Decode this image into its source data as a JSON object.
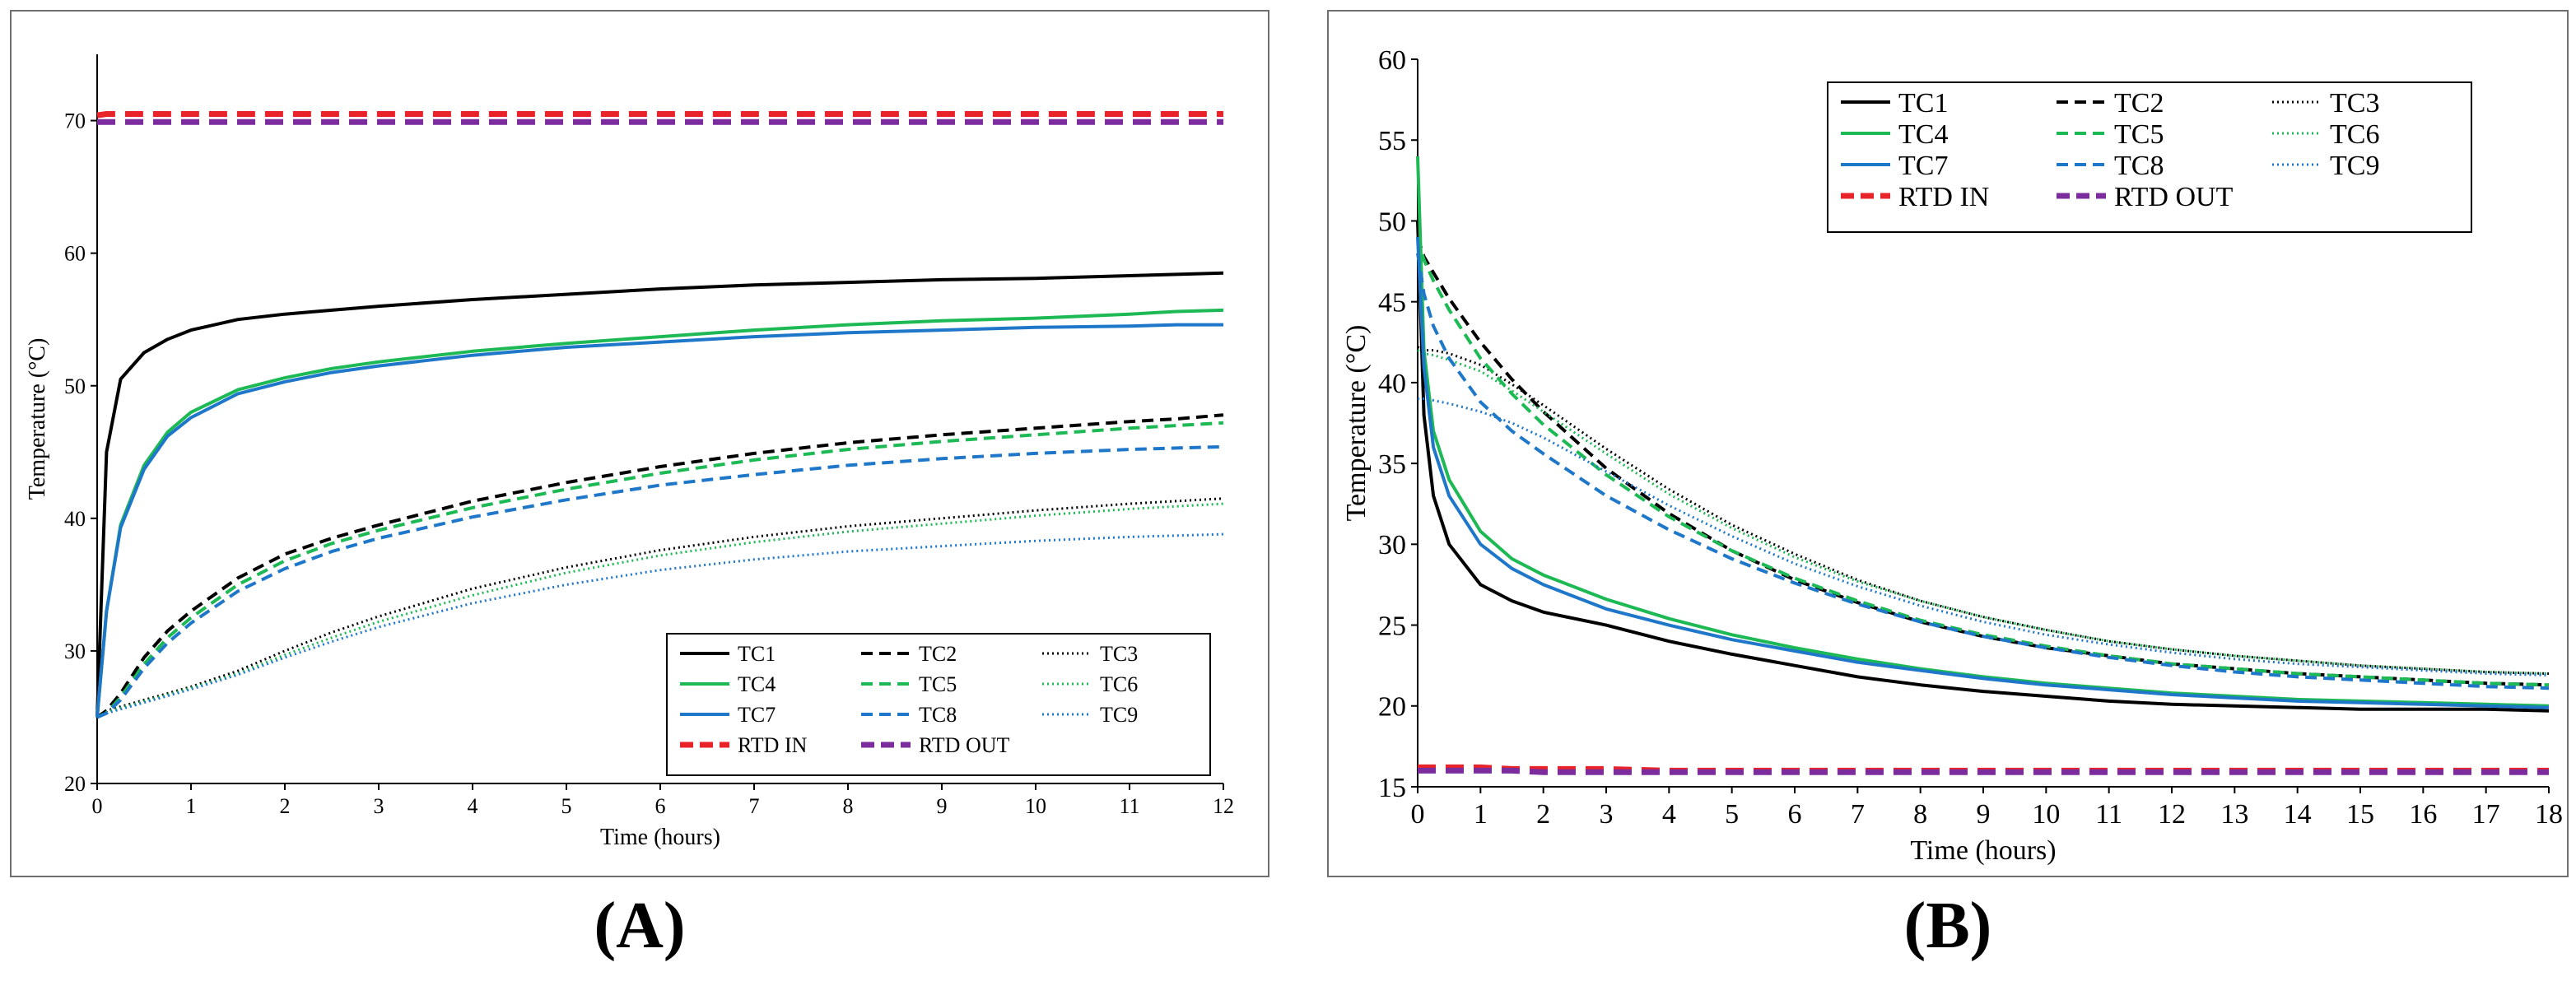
{
  "chart_data": [
    {
      "panel_label": "(A)",
      "type": "line",
      "title": "",
      "xlabel": "Time (hours)",
      "ylabel": "Temperature (°C)",
      "xlim": [
        0,
        12
      ],
      "ylim": [
        20,
        75
      ],
      "xticks": [
        "0",
        "1",
        "2",
        "3",
        "4",
        "5",
        "6",
        "7",
        "8",
        "9",
        "10",
        "11",
        "12"
      ],
      "yticks": [
        "20",
        "30",
        "40",
        "50",
        "60",
        "70"
      ],
      "legend_position": "bottom-right",
      "grid": false,
      "x": [
        0,
        0.1,
        0.25,
        0.5,
        0.75,
        1,
        1.5,
        2,
        2.5,
        3,
        4,
        5,
        6,
        7,
        8,
        9,
        10,
        11,
        11.5,
        12
      ],
      "series": [
        {
          "name": "TC1",
          "color": "#000000",
          "dash": "solid",
          "values": [
            25,
            45,
            50.5,
            52.5,
            53.5,
            54.2,
            55,
            55.4,
            55.7,
            56,
            56.5,
            56.9,
            57.3,
            57.6,
            57.8,
            58,
            58.1,
            58.3,
            58.4,
            58.5
          ]
        },
        {
          "name": "TC2",
          "color": "#000000",
          "dash": "dashed",
          "values": [
            25,
            25.5,
            26.8,
            29.5,
            31.5,
            33,
            35.5,
            37.3,
            38.5,
            39.5,
            41.3,
            42.7,
            43.9,
            44.9,
            45.7,
            46.3,
            46.8,
            47.3,
            47.5,
            47.8
          ]
        },
        {
          "name": "TC3",
          "color": "#000000",
          "dash": "dotted",
          "values": [
            25,
            25.5,
            25.8,
            26.3,
            26.8,
            27.3,
            28.5,
            30,
            31.4,
            32.6,
            34.7,
            36.3,
            37.6,
            38.6,
            39.4,
            40,
            40.6,
            41.1,
            41.3,
            41.5
          ]
        },
        {
          "name": "TC4",
          "color": "#1db954",
          "dash": "solid",
          "values": [
            25,
            33,
            39.5,
            44,
            46.5,
            48,
            49.7,
            50.6,
            51.3,
            51.8,
            52.6,
            53.2,
            53.7,
            54.2,
            54.6,
            54.9,
            55.1,
            55.4,
            55.6,
            55.7
          ]
        },
        {
          "name": "TC5",
          "color": "#1db954",
          "dash": "dashed",
          "values": [
            25,
            25.3,
            26.5,
            29,
            31,
            32.5,
            35,
            36.8,
            38.1,
            39.1,
            40.8,
            42.2,
            43.4,
            44.4,
            45.2,
            45.8,
            46.3,
            46.8,
            47,
            47.2
          ]
        },
        {
          "name": "TC6",
          "color": "#1db954",
          "dash": "dotted",
          "values": [
            25,
            25.4,
            25.7,
            26.2,
            26.7,
            27.2,
            28.3,
            29.7,
            31,
            32.2,
            34.2,
            35.9,
            37.2,
            38.2,
            39,
            39.6,
            40.2,
            40.7,
            40.9,
            41.1
          ]
        },
        {
          "name": "TC7",
          "color": "#1f77c9",
          "dash": "solid",
          "values": [
            25,
            33,
            39.3,
            43.7,
            46.2,
            47.6,
            49.4,
            50.3,
            51,
            51.5,
            52.3,
            52.9,
            53.3,
            53.7,
            54,
            54.2,
            54.4,
            54.5,
            54.6,
            54.6
          ]
        },
        {
          "name": "TC8",
          "color": "#1f77c9",
          "dash": "dashed",
          "values": [
            25,
            25.3,
            26.3,
            28.7,
            30.6,
            32.1,
            34.5,
            36.2,
            37.5,
            38.5,
            40.1,
            41.4,
            42.5,
            43.3,
            44,
            44.5,
            44.9,
            45.2,
            45.3,
            45.4
          ]
        },
        {
          "name": "TC9",
          "color": "#1f77c9",
          "dash": "dotted",
          "values": [
            25,
            25.3,
            25.6,
            26.1,
            26.6,
            27.1,
            28.2,
            29.5,
            30.7,
            31.8,
            33.6,
            35,
            36.1,
            36.9,
            37.5,
            37.9,
            38.3,
            38.6,
            38.7,
            38.8
          ]
        },
        {
          "name": "RTD IN",
          "color": "#e8232a",
          "dash": "dashed-thick",
          "values": [
            70.4,
            70.5,
            70.5,
            70.5,
            70.5,
            70.5,
            70.5,
            70.5,
            70.5,
            70.5,
            70.5,
            70.5,
            70.5,
            70.5,
            70.5,
            70.5,
            70.5,
            70.5,
            70.5,
            70.5
          ]
        },
        {
          "name": "RTD OUT",
          "color": "#7b2d9e",
          "dash": "dashed-thick",
          "values": [
            69.9,
            69.9,
            69.9,
            69.9,
            69.9,
            69.9,
            69.9,
            69.9,
            69.9,
            69.9,
            69.9,
            69.9,
            69.9,
            69.9,
            69.9,
            69.9,
            69.9,
            69.9,
            69.9,
            69.9
          ]
        }
      ]
    },
    {
      "panel_label": "(B)",
      "type": "line",
      "title": "",
      "xlabel": "Time (hours)",
      "ylabel": "Temperature (°C)",
      "xlim": [
        0,
        18
      ],
      "ylim": [
        15,
        60
      ],
      "xticks": [
        "0",
        "1",
        "2",
        "3",
        "4",
        "5",
        "6",
        "7",
        "8",
        "9",
        "10",
        "11",
        "12",
        "13",
        "14",
        "15",
        "16",
        "17",
        "18"
      ],
      "yticks": [
        "15",
        "20",
        "25",
        "30",
        "35",
        "40",
        "45",
        "50",
        "55",
        "60"
      ],
      "legend_position": "top-right",
      "grid": false,
      "x": [
        0,
        0.1,
        0.25,
        0.5,
        1,
        1.5,
        2,
        3,
        4,
        5,
        6,
        7,
        8,
        9,
        10,
        11,
        12,
        13,
        14,
        15,
        16,
        17,
        18
      ],
      "series": [
        {
          "name": "TC1",
          "color": "#000000",
          "dash": "solid",
          "values": [
            50,
            38,
            33,
            30,
            27.5,
            26.5,
            25.8,
            25,
            24,
            23.2,
            22.5,
            21.8,
            21.3,
            20.9,
            20.6,
            20.3,
            20.1,
            20,
            19.9,
            19.8,
            19.8,
            19.8,
            19.7
          ]
        },
        {
          "name": "TC2",
          "color": "#000000",
          "dash": "dashed",
          "values": [
            49,
            47.8,
            46.8,
            45.2,
            42.5,
            40.2,
            38.2,
            34.7,
            31.9,
            29.6,
            27.8,
            26.4,
            25.2,
            24.3,
            23.6,
            23.1,
            22.6,
            22.3,
            22,
            21.8,
            21.6,
            21.4,
            21.3
          ]
        },
        {
          "name": "TC3",
          "color": "#000000",
          "dash": "dotted",
          "values": [
            42.2,
            42,
            42,
            41.8,
            41.1,
            39.9,
            38.6,
            35.9,
            33.4,
            31.2,
            29.4,
            27.8,
            26.5,
            25.5,
            24.7,
            24,
            23.5,
            23.1,
            22.8,
            22.5,
            22.3,
            22.1,
            22
          ]
        },
        {
          "name": "TC4",
          "color": "#1db954",
          "dash": "solid",
          "values": [
            54,
            42,
            37,
            34,
            30.8,
            29.1,
            28.1,
            26.6,
            25.4,
            24.4,
            23.6,
            22.9,
            22.3,
            21.8,
            21.4,
            21.1,
            20.8,
            20.6,
            20.4,
            20.3,
            20.2,
            20.1,
            20
          ]
        },
        {
          "name": "TC5",
          "color": "#1db954",
          "dash": "dashed",
          "values": [
            49,
            47.6,
            46.3,
            44.5,
            41.5,
            39.3,
            37.4,
            34.3,
            31.7,
            29.6,
            27.9,
            26.5,
            25.3,
            24.4,
            23.7,
            23.1,
            22.6,
            22.3,
            22,
            21.8,
            21.6,
            21.4,
            21.3
          ]
        },
        {
          "name": "TC6",
          "color": "#1db954",
          "dash": "dotted",
          "values": [
            42,
            41.8,
            41.7,
            41.4,
            40.7,
            39.5,
            38.2,
            35.6,
            33.1,
            31,
            29.2,
            27.7,
            26.5,
            25.5,
            24.7,
            24,
            23.5,
            23.1,
            22.8,
            22.5,
            22.3,
            22.1,
            22
          ]
        },
        {
          "name": "TC7",
          "color": "#1f77c9",
          "dash": "solid",
          "values": [
            49,
            41,
            36,
            33,
            30,
            28.5,
            27.5,
            26,
            25,
            24.1,
            23.4,
            22.7,
            22.2,
            21.7,
            21.3,
            21,
            20.7,
            20.5,
            20.3,
            20.2,
            20.1,
            20,
            19.9
          ]
        },
        {
          "name": "TC8",
          "color": "#1f77c9",
          "dash": "dashed",
          "values": [
            48,
            45.5,
            43.5,
            41.5,
            38.8,
            37,
            35.6,
            33,
            30.9,
            29.1,
            27.6,
            26.3,
            25.2,
            24.3,
            23.6,
            23,
            22.5,
            22.1,
            21.8,
            21.6,
            21.4,
            21.2,
            21.1
          ]
        },
        {
          "name": "TC9",
          "color": "#1f77c9",
          "dash": "dotted",
          "values": [
            39,
            39,
            38.9,
            38.7,
            38.2,
            37.5,
            36.6,
            34.5,
            32.4,
            30.5,
            28.8,
            27.4,
            26.2,
            25.2,
            24.4,
            23.8,
            23.3,
            22.9,
            22.6,
            22.4,
            22.2,
            22,
            21.9
          ]
        },
        {
          "name": "RTD IN",
          "color": "#e8232a",
          "dash": "dashed-thick",
          "values": [
            16.2,
            16.2,
            16.2,
            16.2,
            16.2,
            16.1,
            16.1,
            16.1,
            16,
            16,
            16,
            16,
            16,
            16,
            16,
            16,
            16,
            16,
            16,
            16,
            16,
            16,
            16
          ]
        },
        {
          "name": "RTD OUT",
          "color": "#7b2d9e",
          "dash": "dashed-thick",
          "values": [
            16,
            16,
            16,
            16,
            16,
            16,
            15.9,
            15.9,
            15.9,
            15.9,
            15.9,
            15.9,
            15.9,
            15.9,
            15.9,
            15.9,
            15.9,
            15.9,
            15.9,
            15.9,
            15.9,
            15.9,
            15.9
          ]
        }
      ]
    }
  ]
}
